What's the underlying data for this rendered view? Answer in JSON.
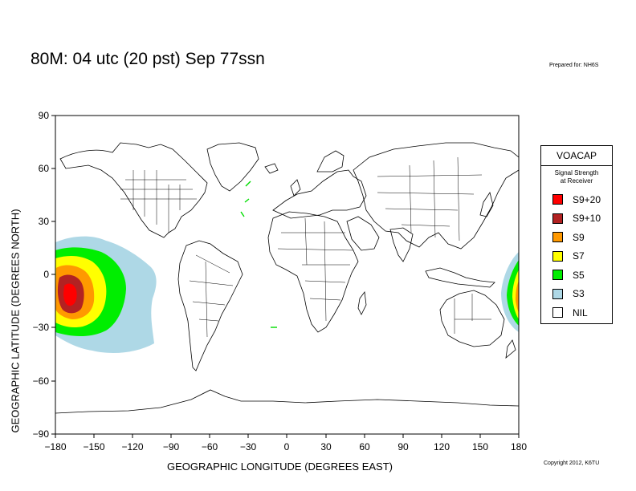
{
  "header": {
    "title": "80M:  04 utc (20 pst) Sep 77ssn",
    "prepared_for": "Prepared for: NH6S"
  },
  "footer": {
    "copyright": "Copyright 2012, K6TU"
  },
  "axes": {
    "xlabel": "GEOGRAPHIC LONGITUDE (DEGREES EAST)",
    "ylabel": "GEOGRAPHIC LATITUDE (DEGREES NORTH)",
    "x_ticks": [
      "−180",
      "−150",
      "−120",
      "−90",
      "−60",
      "−30",
      "0",
      "30",
      "60",
      "90",
      "120",
      "150",
      "180"
    ],
    "y_ticks": [
      "90",
      "60",
      "30",
      "0",
      "−30",
      "−60",
      "−90"
    ],
    "xlim": [
      -180,
      180
    ],
    "ylim": [
      -90,
      90
    ]
  },
  "legend": {
    "title": "VOACAP",
    "subtitle_line1": "Signal Strength",
    "subtitle_line2": "at Receiver",
    "items": [
      {
        "label": "S9+20",
        "color": "#ff0000"
      },
      {
        "label": "S9+10",
        "color": "#b22222"
      },
      {
        "label": "S9",
        "color": "#ff9900"
      },
      {
        "label": "S7",
        "color": "#ffff00"
      },
      {
        "label": "S5",
        "color": "#00ee00"
      },
      {
        "label": "S3",
        "color": "#aed8e6"
      },
      {
        "label": "NIL",
        "color": "#ffffff"
      }
    ]
  },
  "coverage": {
    "transmitter_location": "central South Pacific (approx. 11°S, 170°W)"
  }
}
